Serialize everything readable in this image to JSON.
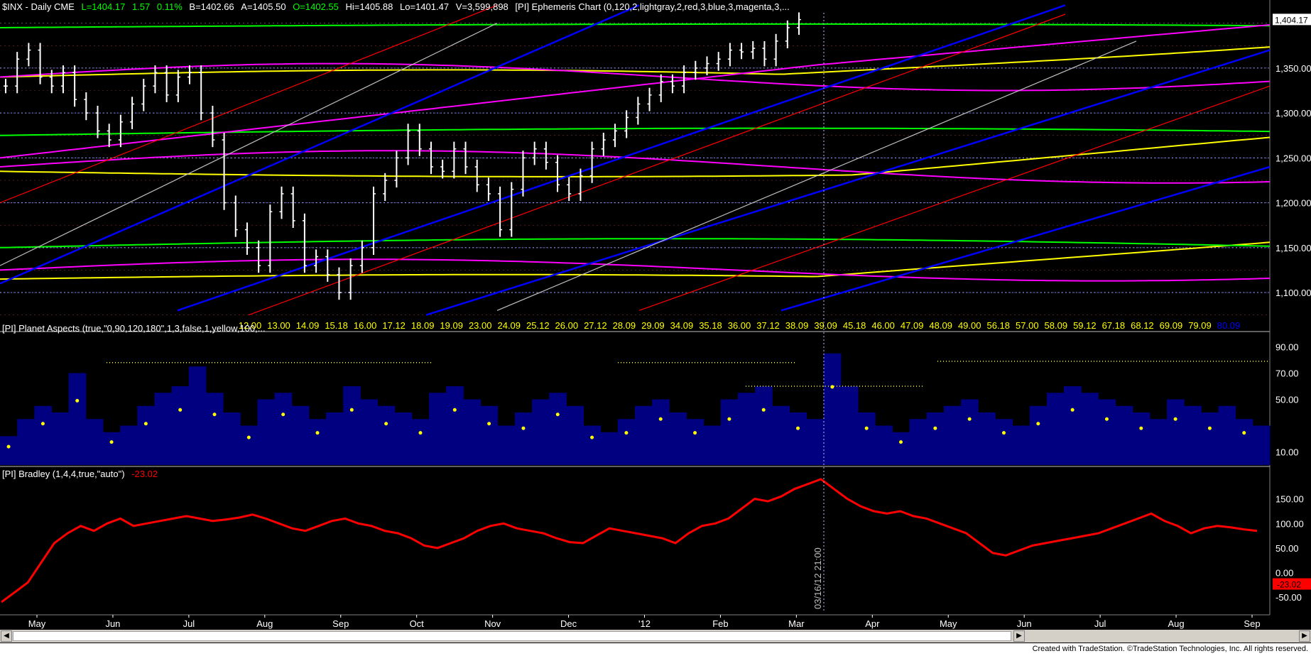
{
  "header": {
    "symbol": "$INX - Daily  CME",
    "last": "L=1404.17",
    "change": "1.57",
    "pct": "0.11%",
    "bid": "B=1402.66",
    "ask": "A=1405.50",
    "open": "O=1402.55",
    "high": "Hi=1405.88",
    "low": "Lo=1401.47",
    "volume": "V=3,599,898",
    "study": "[PI] Ephemeris Chart (0,120,2,lightgray,2,red,3,blue,3,magenta,3,..."
  },
  "colors": {
    "up": "#ffffff",
    "price_label": "#00ff00",
    "accent_red": "#ff0000",
    "histogram": "#000080",
    "aspect_dot": "#ffff00",
    "bradley": "#ff0000"
  },
  "last_price_tag": "1,404.17",
  "price_axis": [
    "1,350.00",
    "1,300.00",
    "1,250.00",
    "1,200.00",
    "1,150.00",
    "1,100.00"
  ],
  "marker_labels": [
    "12.00",
    "13.00",
    "14.09",
    "15.18",
    "16.00",
    "17.12",
    "18.09",
    "19.09",
    "23.00",
    "24.09",
    "25.12",
    "26.00",
    "27.12",
    "28.09",
    "29.09",
    "34.09",
    "35.18",
    "36.00",
    "37.12",
    "38.09",
    "39.09",
    "45.18",
    "46.00",
    "47.09",
    "48.09",
    "49.00",
    "56.18",
    "57.00",
    "58.09",
    "59.12",
    "67.18",
    "68.12",
    "69.09",
    "79.09",
    "80.09"
  ],
  "aspects_panel": {
    "title": "[PI] Planet Aspects (true,\"0,90,120,180\",1,3,false,1,yellow,100,...",
    "axis": [
      "90.00",
      "70.00",
      "50.00",
      "10.00"
    ]
  },
  "bradley_panel": {
    "title": "[PI] Bradley (1,4,4,true,\"auto\")",
    "value": "-23.02",
    "axis": [
      "150.00",
      "100.00",
      "50.00",
      "0.00",
      "-50.00"
    ],
    "last_tag": "-23.02"
  },
  "date_marker": "03/16/12 21:00",
  "months": [
    "May",
    "Jun",
    "Jul",
    "Aug",
    "Sep",
    "Oct",
    "Nov",
    "Dec",
    "'12",
    "Feb",
    "Mar",
    "Apr",
    "May",
    "Jun",
    "Jul",
    "Aug",
    "Sep"
  ],
  "footer": "Created with TradeStation. ©TradeStation Technologies, Inc. All rights reserved.",
  "chart_data": [
    {
      "type": "ohlc",
      "series": [
        {
          "values": [
            1330,
            1360,
            1370,
            1340,
            1330,
            1345,
            1315,
            1300,
            1280,
            1270,
            1290,
            1310,
            1330,
            1345,
            1320,
            1340,
            1345,
            1300,
            1270,
            1200,
            1170,
            1150,
            1130,
            1190,
            1210,
            1180,
            1130,
            1140,
            1120,
            1100,
            1130,
            1150,
            1210,
            1225,
            1250,
            1280,
            1260,
            1240,
            1235,
            1260,
            1240,
            1220,
            1210,
            1170,
            1215,
            1250,
            1260,
            1245,
            1220,
            1210,
            1230,
            1260,
            1270,
            1280,
            1295,
            1310,
            1320,
            1335,
            1330,
            1345,
            1350,
            1355,
            1360,
            1370,
            1368,
            1372,
            1360,
            1380,
            1395,
            1404
          ]
        }
      ],
      "ylim": [
        1070,
        1410
      ]
    },
    {
      "type": "bar",
      "values": [
        20,
        35,
        45,
        40,
        70,
        35,
        25,
        30,
        45,
        55,
        60,
        75,
        55,
        40,
        30,
        50,
        55,
        45,
        35,
        40,
        60,
        50,
        45,
        40,
        35,
        55,
        60,
        50,
        45,
        30,
        40,
        50,
        55,
        45,
        30,
        25,
        35,
        45,
        50,
        40,
        35,
        30,
        50,
        55,
        60,
        45,
        40,
        35,
        85,
        60,
        40,
        30,
        25,
        35,
        40,
        45,
        50,
        40,
        35,
        30,
        45,
        55,
        60,
        55,
        50,
        45,
        40,
        35,
        50,
        45,
        40,
        45,
        35,
        30
      ],
      "ylim": [
        0,
        100
      ]
    },
    {
      "type": "line",
      "values": [
        -60,
        -40,
        -20,
        20,
        60,
        80,
        95,
        85,
        100,
        110,
        95,
        100,
        105,
        110,
        115,
        110,
        105,
        108,
        112,
        118,
        110,
        100,
        90,
        85,
        95,
        105,
        110,
        100,
        95,
        85,
        80,
        70,
        55,
        50,
        60,
        70,
        85,
        95,
        100,
        90,
        85,
        80,
        70,
        62,
        60,
        75,
        90,
        85,
        80,
        75,
        70,
        60,
        80,
        95,
        100,
        110,
        130,
        150,
        145,
        155,
        170,
        180,
        190,
        170,
        150,
        135,
        125,
        120,
        125,
        115,
        110,
        100,
        90,
        80,
        60,
        40,
        35,
        45,
        55,
        60,
        65,
        70,
        75,
        80,
        90,
        100,
        110,
        120,
        105,
        95,
        80,
        90,
        95,
        92,
        88,
        85
      ],
      "ylim": [
        -80,
        200
      ]
    }
  ]
}
